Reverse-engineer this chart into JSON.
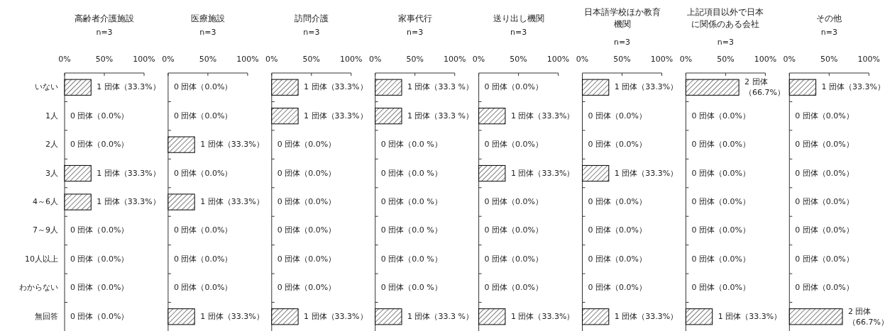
{
  "chart_data": [
    {
      "type": "bar",
      "orientation": "horizontal",
      "title": "高齢者介護施設",
      "subtitle": "n=3",
      "categories": [
        "いない",
        "1人",
        "2人",
        "3人",
        "4～6人",
        "7～9人",
        "10人以上",
        "わからない",
        "無回答"
      ],
      "values": [
        33.3,
        0,
        0,
        33.3,
        33.3,
        0,
        0,
        0,
        0
      ],
      "value_labels": [
        "1 団体（33.3%）",
        "0 団体（0.0%）",
        "0 団体（0.0%）",
        "1 団体（33.3%）",
        "1 団体（33.3%）",
        "0 団体（0.0%）",
        "0 団体（0.0%）",
        "0 団体（0.0%）",
        "0 団体（0.0%）"
      ],
      "color": "#000000",
      "xlim": [
        0,
        100
      ],
      "xticks": [
        {
          "value": 0,
          "label": "0%"
        },
        {
          "value": 50,
          "label": "50%"
        },
        {
          "value": 100,
          "label": "100%"
        }
      ]
    },
    {
      "type": "bar",
      "orientation": "horizontal",
      "title": "医療施設",
      "subtitle": "n=3",
      "categories": [
        null,
        null,
        null,
        null,
        null,
        null,
        null,
        null,
        null
      ],
      "values": [
        0,
        0,
        33.3,
        0,
        33.3,
        0,
        0,
        0,
        33.3
      ],
      "value_labels": [
        "0 団体（0.0%）",
        "0 団体（0.0%）",
        "1 団体（33.3%）",
        "0 団体（0.0%）",
        "1 団体（33.3%）",
        "0 団体（0.0%）",
        "0 団体（0.0%）",
        "0 団体（0.0%）",
        "1 団体（33.3%）"
      ],
      "color": "#000000",
      "xlim": [
        0,
        100
      ],
      "xticks": [
        {
          "value": 0,
          "label": "0%"
        },
        {
          "value": 50,
          "label": "50%"
        },
        {
          "value": 100,
          "label": "100%"
        }
      ]
    },
    {
      "type": "bar",
      "orientation": "horizontal",
      "title": "訪問介護",
      "subtitle": "n=3",
      "categories": [
        null,
        null,
        null,
        null,
        null,
        null,
        null,
        null,
        null
      ],
      "values": [
        33.3,
        33.3,
        0,
        0,
        0,
        0,
        0,
        0,
        33.3
      ],
      "value_labels": [
        "1 団体（33.3%）",
        "1 団体（33.3%）",
        "0 団体（0.0%）",
        "0 団体（0.0%）",
        "0 団体（0.0%）",
        "0 団体（0.0%）",
        "0 団体（0.0%）",
        "0 団体（0.0%）",
        "1 団体（33.3%）"
      ],
      "color": "#000000",
      "xlim": [
        0,
        100
      ],
      "xticks": [
        {
          "value": 0,
          "label": "0%"
        },
        {
          "value": 50,
          "label": "50%"
        },
        {
          "value": 100,
          "label": "100%"
        }
      ]
    },
    {
      "type": "bar",
      "orientation": "horizontal",
      "title": "家事代行",
      "subtitle": "n=3",
      "categories": [
        null,
        null,
        null,
        null,
        null,
        null,
        null,
        null,
        null
      ],
      "values": [
        33.3,
        33.3,
        0,
        0,
        0,
        0,
        0,
        0,
        33.3
      ],
      "value_labels": [
        "1 団体（33.3 %）",
        "1 団体（33.3 %）",
        "0 団体（0.0 %）",
        "0 団体（0.0 %）",
        "0 団体（0.0 %）",
        "0 団体（0.0 %）",
        "0 団体（0.0 %）",
        "0 団体（0.0 %）",
        "1 団体（33.3 %）"
      ],
      "color": "#000000",
      "xlim": [
        0,
        100
      ],
      "xticks": [
        {
          "value": 0,
          "label": "0%"
        },
        {
          "value": 50,
          "label": "50%"
        },
        {
          "value": 100,
          "label": "100%"
        }
      ]
    },
    {
      "type": "bar",
      "orientation": "horizontal",
      "title": "送り出し機関",
      "subtitle": "n=3",
      "categories": [
        null,
        null,
        null,
        null,
        null,
        null,
        null,
        null,
        null
      ],
      "values": [
        0,
        33.3,
        0,
        33.3,
        0,
        0,
        0,
        0,
        33.3
      ],
      "value_labels": [
        "0 団体（0.0%）",
        "1 団体（33.3%）",
        "0 団体（0.0%）",
        "1 団体（33.3%）",
        "0 団体（0.0%）",
        "0 団体（0.0%）",
        "0 団体（0.0%）",
        "0 団体（0.0%）",
        "1 団体（33.3%）"
      ],
      "color": "#000000",
      "xlim": [
        0,
        100
      ],
      "xticks": [
        {
          "value": 0,
          "label": "0%"
        },
        {
          "value": 50,
          "label": "50%"
        },
        {
          "value": 100,
          "label": "100%"
        }
      ]
    },
    {
      "type": "bar",
      "orientation": "horizontal",
      "title": "日本語学校ほか教育機関",
      "subtitle": "n=3",
      "categories": [
        null,
        null,
        null,
        null,
        null,
        null,
        null,
        null,
        null
      ],
      "values": [
        33.3,
        0,
        0,
        33.3,
        0,
        0,
        0,
        0,
        33.3
      ],
      "value_labels": [
        "1 団体（33.3%）",
        "0 団体（0.0%）",
        "0 団体（0.0%）",
        "1 団体（33.3%）",
        "0 団体（0.0%）",
        "0 団体（0.0%）",
        "0 団体（0.0%）",
        "0 団体（0.0%）",
        "1 団体（33.3%）"
      ],
      "color": "#000000",
      "xlim": [
        0,
        100
      ],
      "xticks": [
        {
          "value": 0,
          "label": "0%"
        },
        {
          "value": 50,
          "label": "50%"
        },
        {
          "value": 100,
          "label": "100%"
        }
      ]
    },
    {
      "type": "bar",
      "orientation": "horizontal",
      "title": "上記項目以外で日本に関係のある会社",
      "subtitle": "n=3",
      "categories": [
        null,
        null,
        null,
        null,
        null,
        null,
        null,
        null,
        null
      ],
      "values": [
        66.7,
        0,
        0,
        0,
        0,
        0,
        0,
        0,
        33.3
      ],
      "value_labels": [
        "2 団体（66.7%）",
        "0 団体（0.0%）",
        "0 団体（0.0%）",
        "0 団体（0.0%）",
        "0 団体（0.0%）",
        "0 団体（0.0%）",
        "0 団体（0.0%）",
        "0 団体（0.0%）",
        "1 団体（33.3%）"
      ],
      "color": "#000000",
      "xlim": [
        0,
        100
      ],
      "xticks": [
        {
          "value": 0,
          "label": "0%"
        },
        {
          "value": 50,
          "label": "50%"
        },
        {
          "value": 100,
          "label": "100%"
        }
      ]
    },
    {
      "type": "bar",
      "orientation": "horizontal",
      "title": "その他",
      "subtitle": "n=3",
      "categories": [
        null,
        null,
        null,
        null,
        null,
        null,
        null,
        null,
        null
      ],
      "values": [
        33.3,
        0,
        0,
        0,
        0,
        0,
        0,
        0,
        66.7
      ],
      "value_labels": [
        "1 団体（33.3%）",
        "0 団体（0.0%）",
        "0 団体（0.0%）",
        "0 団体（0.0%）",
        "0 団体（0.0%）",
        "0 団体（0.0%）",
        "0 団体（0.0%）",
        "0 団体（0.0%）",
        "2 団体（66.7%）"
      ],
      "color": "#000000",
      "xlim": [
        0,
        100
      ],
      "xticks": [
        {
          "value": 0,
          "label": "0%"
        },
        {
          "value": 50,
          "label": "50%"
        },
        {
          "value": 100,
          "label": "100%"
        }
      ]
    }
  ]
}
